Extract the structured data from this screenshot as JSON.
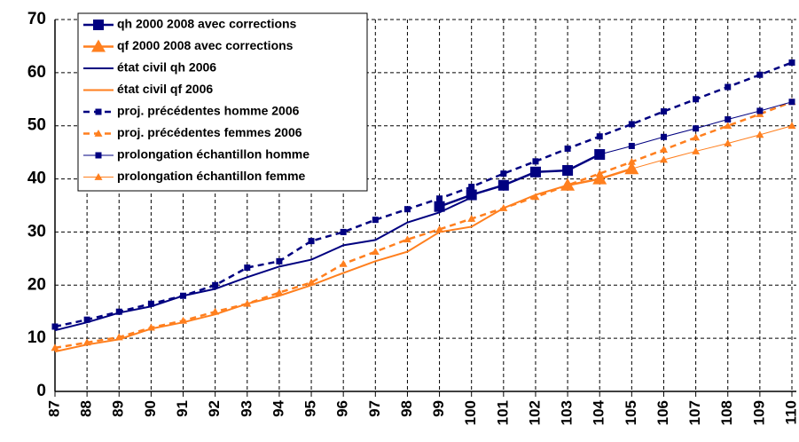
{
  "chart_data": {
    "type": "line",
    "categories": [
      "87",
      "88",
      "89",
      "90",
      "91",
      "92",
      "93",
      "94",
      "95",
      "96",
      "97",
      "98",
      "99",
      "100",
      "101",
      "102",
      "103",
      "104",
      "105",
      "106",
      "107",
      "108",
      "109",
      "110"
    ],
    "ylim": [
      0,
      70
    ],
    "yticks": [
      0,
      10,
      20,
      30,
      40,
      50,
      60,
      70
    ],
    "grid": true,
    "series": [
      {
        "name": "qh 2000 2008 avec corrections",
        "color": "#000080",
        "marker": "square",
        "marker_size": "large",
        "dashed": false,
        "line_width": 2.5,
        "values": [
          null,
          null,
          null,
          null,
          null,
          null,
          null,
          null,
          null,
          null,
          null,
          null,
          34.8,
          37,
          38.8,
          41.3,
          41.6,
          44.6,
          null,
          null,
          null,
          null,
          null,
          null
        ]
      },
      {
        "name": "qf 2000 2008 avec corrections",
        "color": "#ff7f1e",
        "marker": "triangle",
        "marker_size": "large",
        "dashed": false,
        "line_width": 2.5,
        "values": [
          null,
          null,
          null,
          null,
          null,
          null,
          null,
          null,
          null,
          null,
          null,
          null,
          null,
          null,
          null,
          null,
          38.8,
          40,
          41.9,
          null,
          null,
          null,
          null,
          null
        ]
      },
      {
        "name": "état civil qh 2006",
        "color": "#000080",
        "marker": "none",
        "marker_size": "small",
        "dashed": false,
        "line_width": 2,
        "values": [
          11.5,
          13,
          14.8,
          16,
          18,
          19.3,
          21.5,
          23.5,
          24.8,
          27.5,
          28.5,
          31.8,
          33.7,
          36.5,
          null,
          null,
          null,
          null,
          null,
          null,
          null,
          null,
          null,
          null
        ]
      },
      {
        "name": "état civil qf 2006",
        "color": "#ff7f1e",
        "marker": "none",
        "marker_size": "small",
        "dashed": false,
        "line_width": 2,
        "values": [
          7.5,
          8.8,
          9.8,
          11.8,
          13,
          14.5,
          16.5,
          18,
          20,
          22.3,
          24.5,
          26.3,
          30,
          31,
          34.5,
          37,
          38.8,
          null,
          null,
          null,
          null,
          null,
          null,
          null
        ]
      },
      {
        "name": "proj. précédentes homme 2006",
        "color": "#000080",
        "marker": "square",
        "marker_size": "small",
        "dashed": true,
        "line_width": 2.5,
        "values": [
          12.2,
          13.5,
          15,
          16.5,
          18,
          20,
          23.3,
          24.5,
          28.3,
          30,
          32.3,
          34.3,
          36.3,
          38.5,
          41,
          43.3,
          45.7,
          48,
          50.3,
          52.7,
          55,
          57.3,
          59.6,
          61.9
        ]
      },
      {
        "name": "proj. précédentes femmes 2006",
        "color": "#ff7f1e",
        "marker": "triangle",
        "marker_size": "small",
        "dashed": true,
        "line_width": 2.5,
        "values": [
          8.2,
          9.2,
          10.2,
          12,
          13.3,
          15,
          16.5,
          18.6,
          20.5,
          24,
          26.3,
          28.6,
          30.5,
          32.5,
          34.5,
          36.6,
          38.8,
          41,
          43.2,
          45.5,
          47.8,
          50,
          52.2,
          54.5
        ]
      },
      {
        "name": "prolongation échantillon homme",
        "color": "#000080",
        "marker": "square",
        "marker_size": "small",
        "dashed": false,
        "line_width": 1,
        "values": [
          null,
          null,
          null,
          null,
          null,
          null,
          null,
          null,
          null,
          null,
          null,
          null,
          null,
          null,
          null,
          null,
          null,
          44.6,
          46.2,
          47.9,
          49.5,
          51.2,
          52.8,
          54.5
        ]
      },
      {
        "name": "prolongation échantillon femme",
        "color": "#ff7f1e",
        "marker": "triangle",
        "marker_size": "small",
        "dashed": false,
        "line_width": 1,
        "values": [
          null,
          null,
          null,
          null,
          null,
          null,
          null,
          null,
          null,
          null,
          null,
          null,
          null,
          null,
          null,
          null,
          null,
          null,
          41.9,
          43.6,
          45.2,
          46.7,
          48.3,
          50
        ]
      }
    ]
  }
}
